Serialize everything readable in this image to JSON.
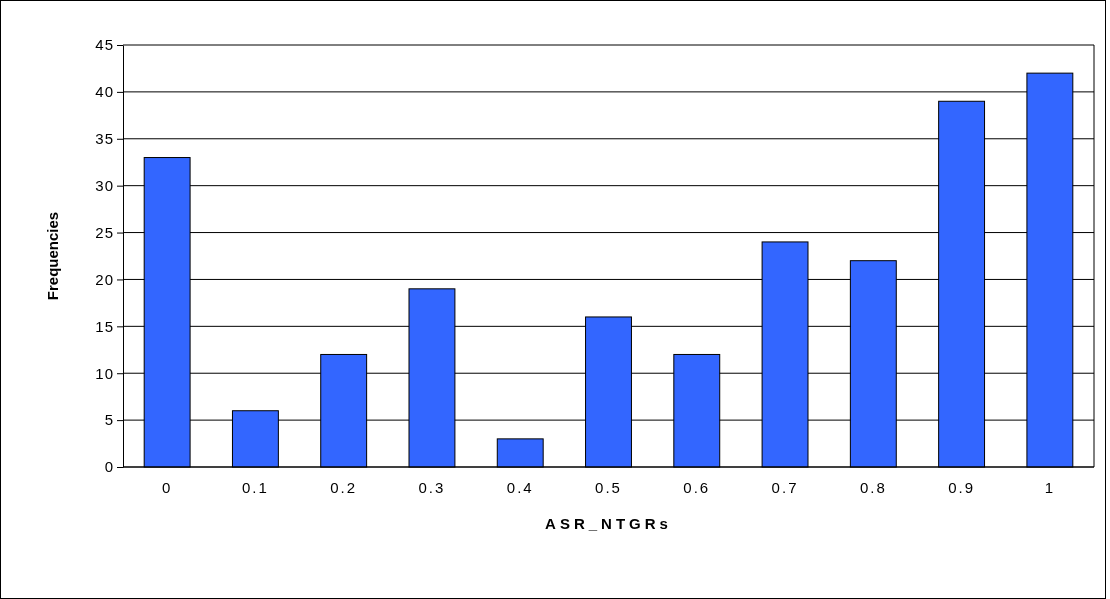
{
  "chart_data": {
    "type": "bar",
    "xlabel": "ASR_NTGRs",
    "ylabel": "Frequencies",
    "categories": [
      "0",
      "0.1",
      "0.2",
      "0.3",
      "0.4",
      "0.5",
      "0.6",
      "0.7",
      "0.8",
      "0.9",
      "1"
    ],
    "values": [
      33,
      6,
      12,
      19,
      3,
      16,
      12,
      24,
      22,
      39,
      42
    ],
    "color": "#3366ff",
    "ylim": [
      0,
      45
    ],
    "yticks": [
      0,
      5,
      10,
      15,
      20,
      25,
      30,
      35,
      40,
      45
    ],
    "grid": "y"
  }
}
